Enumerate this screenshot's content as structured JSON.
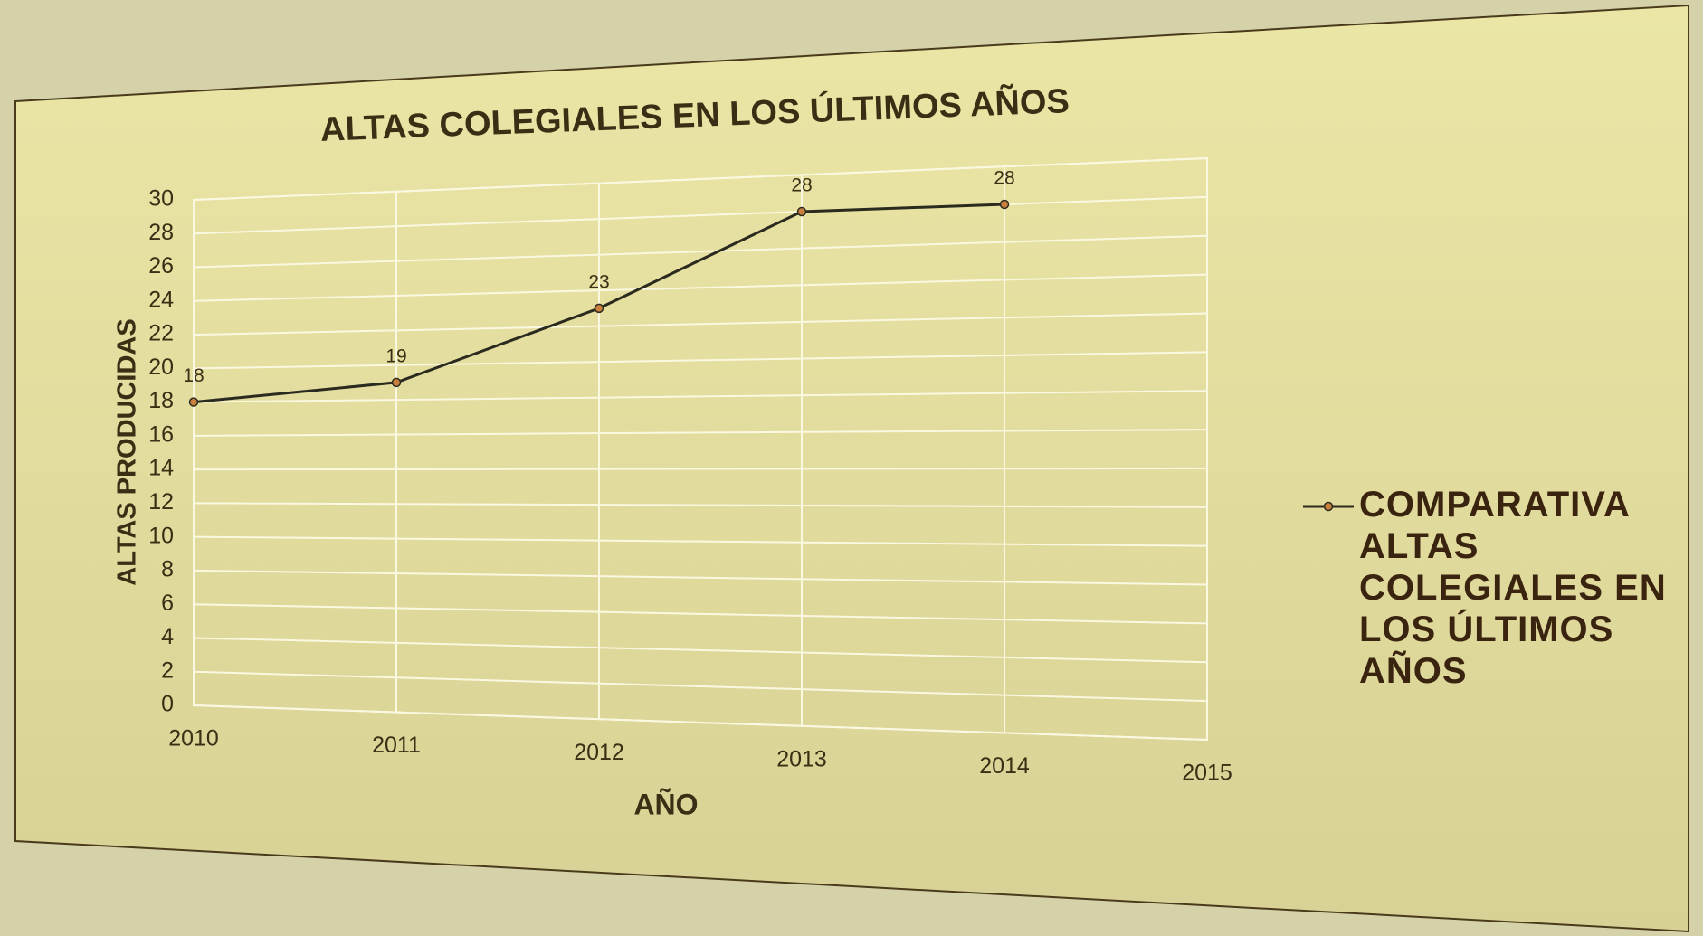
{
  "chart_data": {
    "type": "line",
    "title": "ALTAS COLEGIALES EN LOS ÚLTIMOS AÑOS",
    "xlabel": "AÑO",
    "ylabel": "ALTAS PRODUCIDAS",
    "x": [
      2010,
      2011,
      2012,
      2013,
      2014
    ],
    "series": [
      {
        "name": "COMPARATIVA ALTAS COLEGIALES EN LOS ÚLTIMOS AÑOS",
        "color": "#2b2a1f",
        "marker_color": "#c8803c",
        "values": [
          18,
          19,
          23,
          28,
          28
        ]
      }
    ],
    "xlim": [
      2010,
      2015
    ],
    "xticks": [
      2010,
      2011,
      2012,
      2013,
      2014,
      2015
    ],
    "ylim": [
      0,
      30
    ],
    "yticks": [
      0,
      2,
      4,
      6,
      8,
      10,
      12,
      14,
      16,
      18,
      20,
      22,
      24,
      26,
      28,
      30
    ],
    "grid": true,
    "legend": "right"
  }
}
